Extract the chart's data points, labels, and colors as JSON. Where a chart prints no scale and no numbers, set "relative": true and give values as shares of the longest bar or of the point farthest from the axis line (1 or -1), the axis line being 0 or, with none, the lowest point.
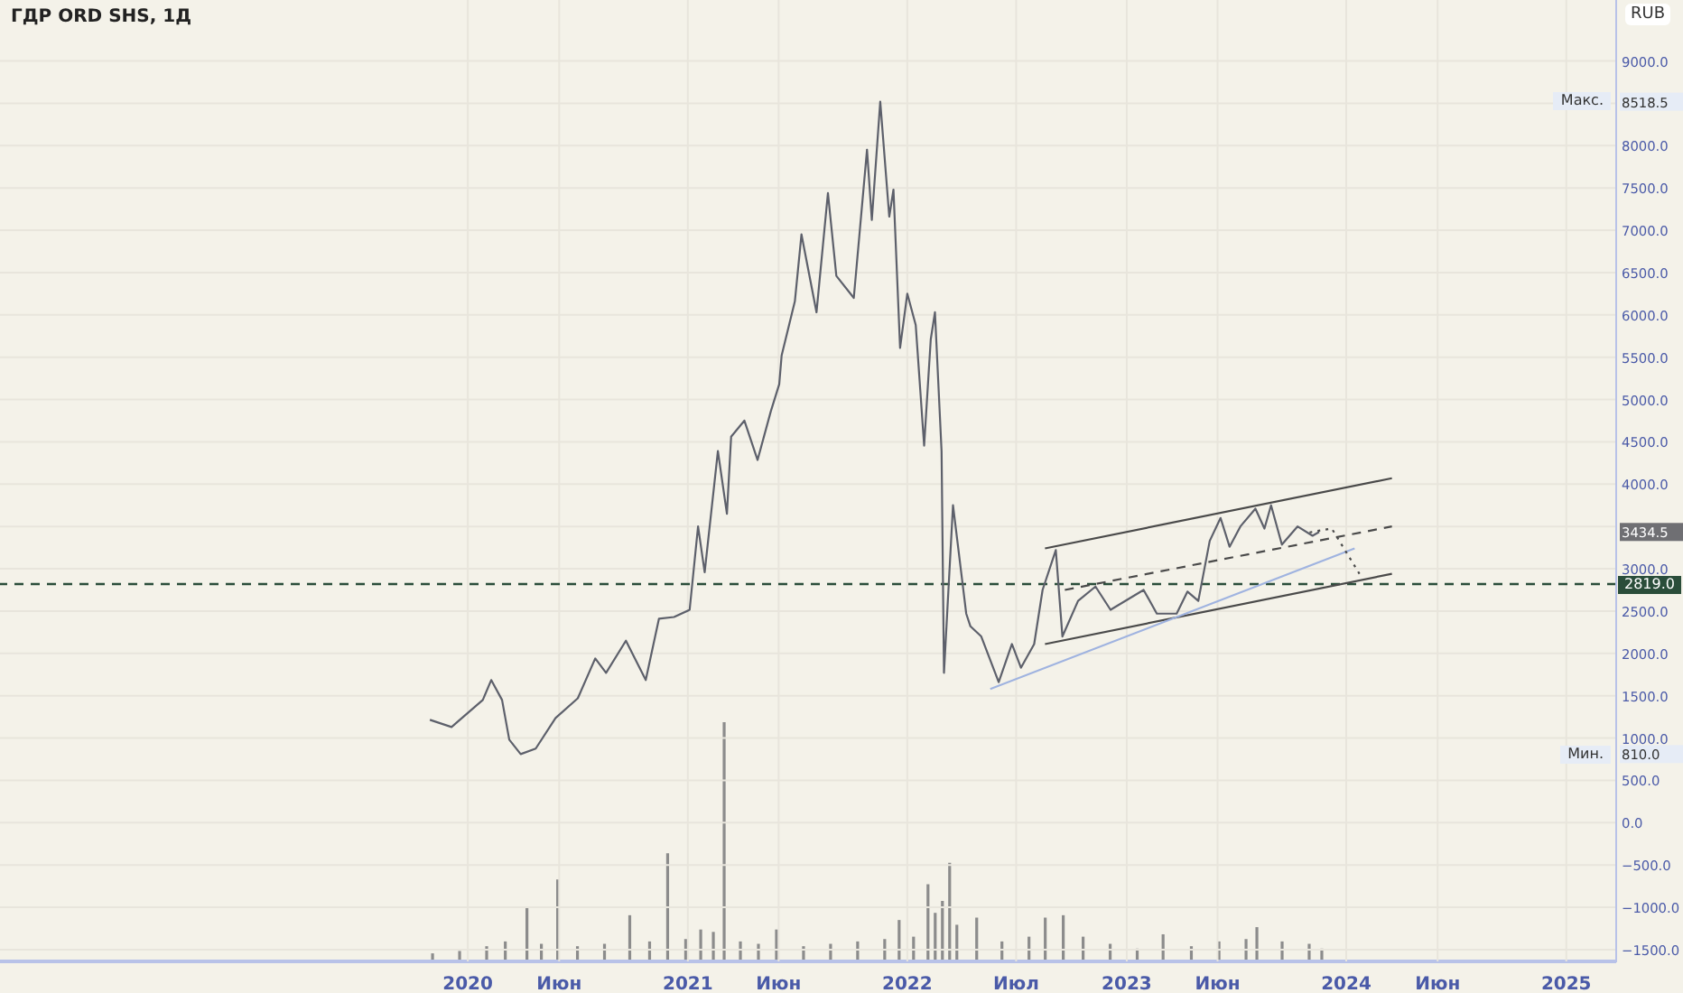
{
  "chart_data": [
    {
      "type": "line",
      "title": "ГДР ORD SHS, 1Д",
      "ylabel": "RUB",
      "grid": true,
      "marker": "none",
      "xlim": [
        "2017-11-14",
        "2025-03-25"
      ],
      "ylim": [
        -1650,
        9720
      ],
      "xticks": [
        {
          "value": "2020-01-01",
          "label": "2020"
        },
        {
          "value": "2020-06-01",
          "label": "Июн"
        },
        {
          "value": "2021-01-01",
          "label": "2021"
        },
        {
          "value": "2021-06-01",
          "label": "Июн"
        },
        {
          "value": "2022-01-01",
          "label": "2022"
        },
        {
          "value": "2022-07-01",
          "label": "Июл"
        },
        {
          "value": "2023-01-01",
          "label": "2023"
        },
        {
          "value": "2023-06-01",
          "label": "Июн"
        },
        {
          "value": "2024-01-01",
          "label": "2024"
        },
        {
          "value": "2024-06-01",
          "label": "Июн"
        },
        {
          "value": "2025-01-01",
          "label": "2025"
        }
      ],
      "yticks": [
        {
          "value": -1500,
          "label": "−1500.0"
        },
        {
          "value": -1000,
          "label": "−1000.0"
        },
        {
          "value": -500,
          "label": "−500.0"
        },
        {
          "value": 0,
          "label": "0.0"
        },
        {
          "value": 500,
          "label": "500.0"
        },
        {
          "value": 810,
          "label": "810.0"
        },
        {
          "value": 1000,
          "label": "1000.0"
        },
        {
          "value": 1500,
          "label": "1500.0"
        },
        {
          "value": 2000,
          "label": "2000.0"
        },
        {
          "value": 2500,
          "label": "2500.0"
        },
        {
          "value": 3000,
          "label": "3000.0"
        },
        {
          "value": 3434.5,
          "label": "3434.5"
        },
        {
          "value": 3500,
          "label": null
        },
        {
          "value": 4000,
          "label": "4000.0"
        },
        {
          "value": 4500,
          "label": "4500.0"
        },
        {
          "value": 5000,
          "label": "5000.0"
        },
        {
          "value": 5500,
          "label": "5500.0"
        },
        {
          "value": 6000,
          "label": "6000.0"
        },
        {
          "value": 6500,
          "label": "6500.0"
        },
        {
          "value": 7000,
          "label": "7000.0"
        },
        {
          "value": 7500,
          "label": "7500.0"
        },
        {
          "value": 8000,
          "label": "8000.0"
        },
        {
          "value": 8500,
          "label": null
        },
        {
          "value": 8518.5,
          "label": "8518.5"
        },
        {
          "value": 9000,
          "label": "9000.0"
        }
      ],
      "series": [
        {
          "color": "#5d606b",
          "x": [
            "2019-10-30",
            "2019-12-05",
            "2020-01-26",
            "2020-02-09",
            "2020-02-27",
            "2020-03-10",
            "2020-03-29",
            "2020-04-23",
            "2020-05-26",
            "2020-07-02",
            "2020-07-31",
            "2020-08-18",
            "2020-09-20",
            "2020-10-23",
            "2020-11-14",
            "2020-12-09",
            "2021-01-04",
            "2021-01-18",
            "2021-01-29",
            "2021-02-20",
            "2021-03-07",
            "2021-03-14",
            "2021-04-05",
            "2021-04-27",
            "2021-05-19",
            "2021-06-02",
            "2021-06-06",
            "2021-06-28",
            "2021-07-09",
            "2021-08-03",
            "2021-08-22",
            "2021-09-05",
            "2021-10-04",
            "2021-10-26",
            "2021-11-03",
            "2021-11-17",
            "2021-12-02",
            "2021-12-09",
            "2021-12-20",
            "2022-01-01",
            "2022-01-15",
            "2022-01-29",
            "2022-02-09",
            "2022-02-16",
            "2022-02-27",
            "2022-03-03",
            "2022-03-18",
            "2022-04-09",
            "2022-04-16",
            "2022-05-04",
            "2022-06-02",
            "2022-06-24",
            "2022-07-09",
            "2022-07-31",
            "2022-08-14",
            "2022-09-05",
            "2022-09-16",
            "2022-10-12",
            "2022-11-10",
            "2022-12-05",
            "2023-01-29",
            "2023-02-20",
            "2023-03-25",
            "2023-04-12",
            "2023-04-30",
            "2023-05-19",
            "2023-06-06",
            "2023-06-21",
            "2023-07-09",
            "2023-08-03",
            "2023-08-18",
            "2023-08-29",
            "2023-09-16",
            "2023-10-12",
            "2023-11-06",
            "2023-11-17"
          ],
          "values": [
            1215,
            1130,
            1450,
            1685,
            1450,
            980,
            810,
            875,
            1237,
            1470,
            1940,
            1770,
            2150,
            1685,
            2410,
            2430,
            2515,
            3500,
            2960,
            4390,
            3650,
            4560,
            4750,
            4285,
            4860,
            5180,
            5520,
            6160,
            6950,
            6030,
            7440,
            6460,
            6200,
            7950,
            7120,
            8518.5,
            7160,
            7480,
            5610,
            6250,
            5880,
            4455,
            5710,
            6030,
            4390,
            1770,
            3750,
            2470,
            2320,
            2200,
            1660,
            2110,
            1830,
            2110,
            2750,
            3220,
            2200,
            2620,
            2790,
            2515,
            2750,
            2470,
            2470,
            2730,
            2620,
            3330,
            3600,
            3260,
            3500,
            3710,
            3475,
            3750,
            3285,
            3500,
            3390,
            3434.5
          ]
        },
        {
          "color": "#4a4a4a",
          "x": [
            "2022-08-18",
            "2024-03-17"
          ],
          "values": [
            3240,
            4070
          ]
        },
        {
          "color": "#4a4a4a",
          "x": [
            "2022-08-18",
            "2024-03-17"
          ],
          "values": [
            2110,
            2940
          ]
        },
        {
          "color": "#4a4a4a",
          "line_style": "dashed",
          "x": [
            "2022-09-20",
            "2024-03-17"
          ],
          "values": [
            2750,
            3500
          ]
        },
        {
          "color": "#9fb3e0",
          "x": [
            "2022-05-19",
            "2024-01-15"
          ],
          "values": [
            1580,
            3240
          ]
        },
        {
          "color": "#4a4a4a",
          "line_style": "dotted",
          "x": [
            "2023-11-01",
            "2023-12-08",
            "2024-01-23"
          ],
          "values": [
            3430,
            3475,
            2940
          ]
        }
      ],
      "ref_lines": [
        {
          "axis": "y",
          "value": 2819,
          "label": "2819.0",
          "color": "#2a4d3a",
          "line_style": "dashed"
        }
      ],
      "annotations": [
        {
          "text": "Макс.",
          "y": 8518.5
        },
        {
          "text": "Мин.",
          "y": 810
        }
      ]
    },
    {
      "type": "bar",
      "relative": true,
      "color": "#8c8c8c",
      "xlim": [
        "2017-11-14",
        "2025-03-25"
      ],
      "x": [
        "2019-11-04",
        "2019-12-19",
        "2020-02-02",
        "2020-03-04",
        "2020-04-09",
        "2020-05-03",
        "2020-05-30",
        "2020-07-02",
        "2020-08-16",
        "2020-09-27",
        "2020-10-30",
        "2020-11-29",
        "2020-12-29",
        "2021-01-23",
        "2021-02-13",
        "2021-03-03",
        "2021-03-30",
        "2021-04-29",
        "2021-05-29",
        "2021-07-13",
        "2021-08-27",
        "2021-10-11",
        "2021-11-25",
        "2021-12-19",
        "2022-01-12",
        "2022-02-05",
        "2022-02-17",
        "2022-03-01",
        "2022-03-13",
        "2022-03-25",
        "2022-04-27",
        "2022-06-08",
        "2022-07-23",
        "2022-08-19",
        "2022-09-18",
        "2022-10-21",
        "2022-12-05",
        "2023-01-19",
        "2023-03-03",
        "2023-04-19",
        "2023-06-04",
        "2023-07-19",
        "2023-08-06",
        "2023-09-17",
        "2023-11-01",
        "2023-11-22"
      ],
      "values": [
        0.03,
        0.04,
        0.06,
        0.08,
        0.22,
        0.07,
        0.34,
        0.06,
        0.07,
        0.19,
        0.08,
        0.45,
        0.09,
        0.13,
        0.12,
        1,
        0.08,
        0.07,
        0.13,
        0.06,
        0.07,
        0.08,
        0.09,
        0.17,
        0.1,
        0.32,
        0.2,
        0.25,
        0.41,
        0.15,
        0.18,
        0.08,
        0.1,
        0.18,
        0.19,
        0.1,
        0.07,
        0.05,
        0.11,
        0.06,
        0.08,
        0.09,
        0.14,
        0.08,
        0.07,
        0.05
      ]
    }
  ]
}
